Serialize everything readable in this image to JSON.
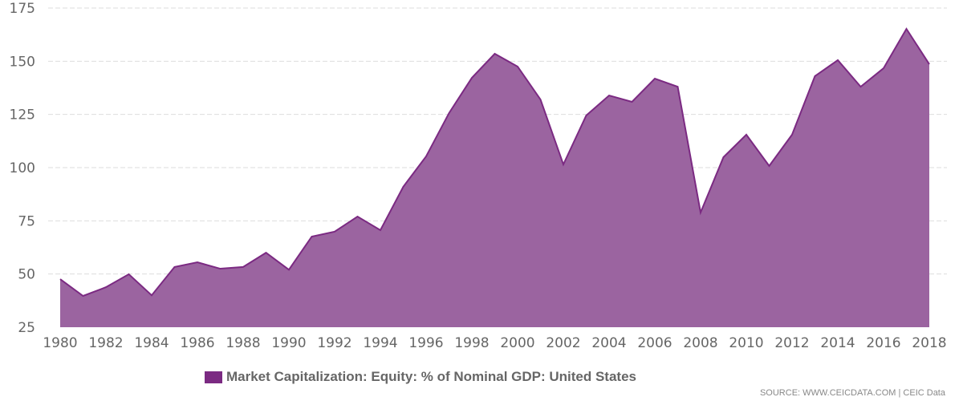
{
  "chart_data": {
    "type": "area",
    "x": [
      1980,
      1981,
      1982,
      1983,
      1984,
      1985,
      1986,
      1987,
      1988,
      1989,
      1990,
      1991,
      1992,
      1993,
      1994,
      1995,
      1996,
      1997,
      1998,
      1999,
      2000,
      2001,
      2002,
      2003,
      2004,
      2005,
      2006,
      2007,
      2008,
      2009,
      2010,
      2011,
      2012,
      2013,
      2014,
      2015,
      2016,
      2017,
      2018
    ],
    "series": [
      {
        "name": "Market Capitalization: Equity: % of Nominal GDP: United States",
        "values": [
          47.6,
          39.7,
          43.8,
          49.9,
          40.0,
          53.3,
          55.5,
          52.5,
          53.3,
          60.0,
          52.0,
          67.6,
          69.9,
          77.0,
          70.6,
          91.0,
          105.3,
          125.6,
          142.2,
          153.5,
          147.5,
          132.0,
          101.5,
          124.5,
          133.9,
          130.9,
          141.8,
          138.0,
          78.9,
          104.9,
          115.5,
          100.8,
          115.5,
          143.0,
          150.5,
          138.0,
          146.7,
          165.2,
          148.6
        ]
      }
    ],
    "ylim": [
      25,
      175
    ],
    "yticks": [
      25,
      50,
      75,
      100,
      125,
      150,
      175
    ],
    "xticks": [
      1980,
      1982,
      1984,
      1986,
      1988,
      1990,
      1992,
      1994,
      1996,
      1998,
      2000,
      2002,
      2004,
      2006,
      2008,
      2010,
      2012,
      2014,
      2016,
      2018
    ],
    "grid": true,
    "legend_position": "bottom",
    "colors": {
      "line": "#7b2a82",
      "fill": "#9b64a0",
      "grid": "#dddddd"
    }
  },
  "source": "SOURCE: WWW.CEICDATA.COM | CEIC Data"
}
